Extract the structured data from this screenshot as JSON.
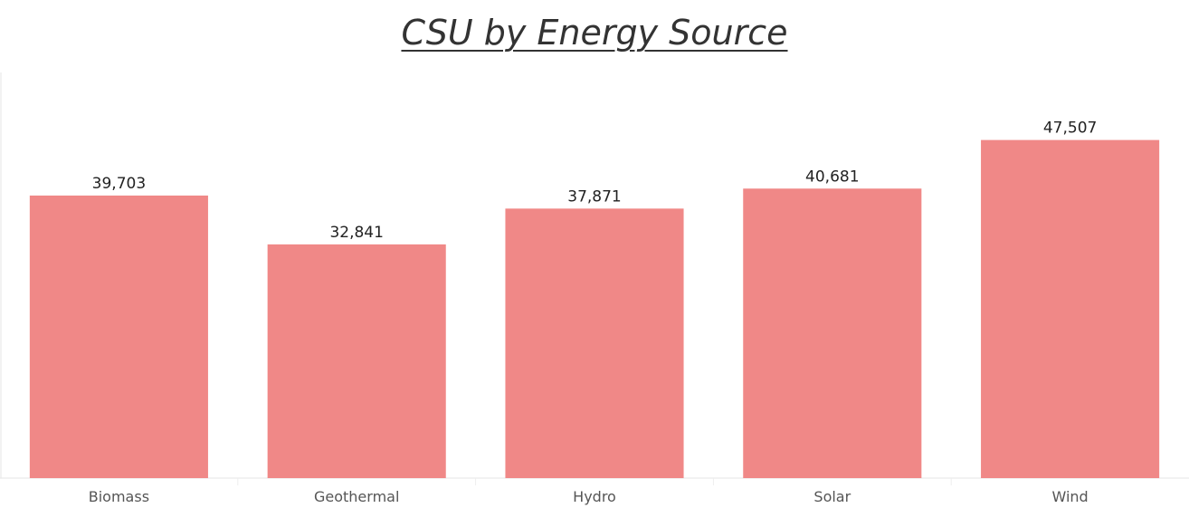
{
  "chart_data": {
    "type": "bar",
    "title": "CSU by Energy Source",
    "categories": [
      "Biomass",
      "Geothermal",
      "Hydro",
      "Solar",
      "Wind"
    ],
    "values": [
      39703,
      32841,
      37871,
      40681,
      47507
    ],
    "value_labels": [
      "39,703",
      "32,841",
      "37,871",
      "40,681",
      "47,507"
    ],
    "ylim": [
      0,
      57000
    ],
    "grid": false,
    "bar_color": "#F08887"
  }
}
